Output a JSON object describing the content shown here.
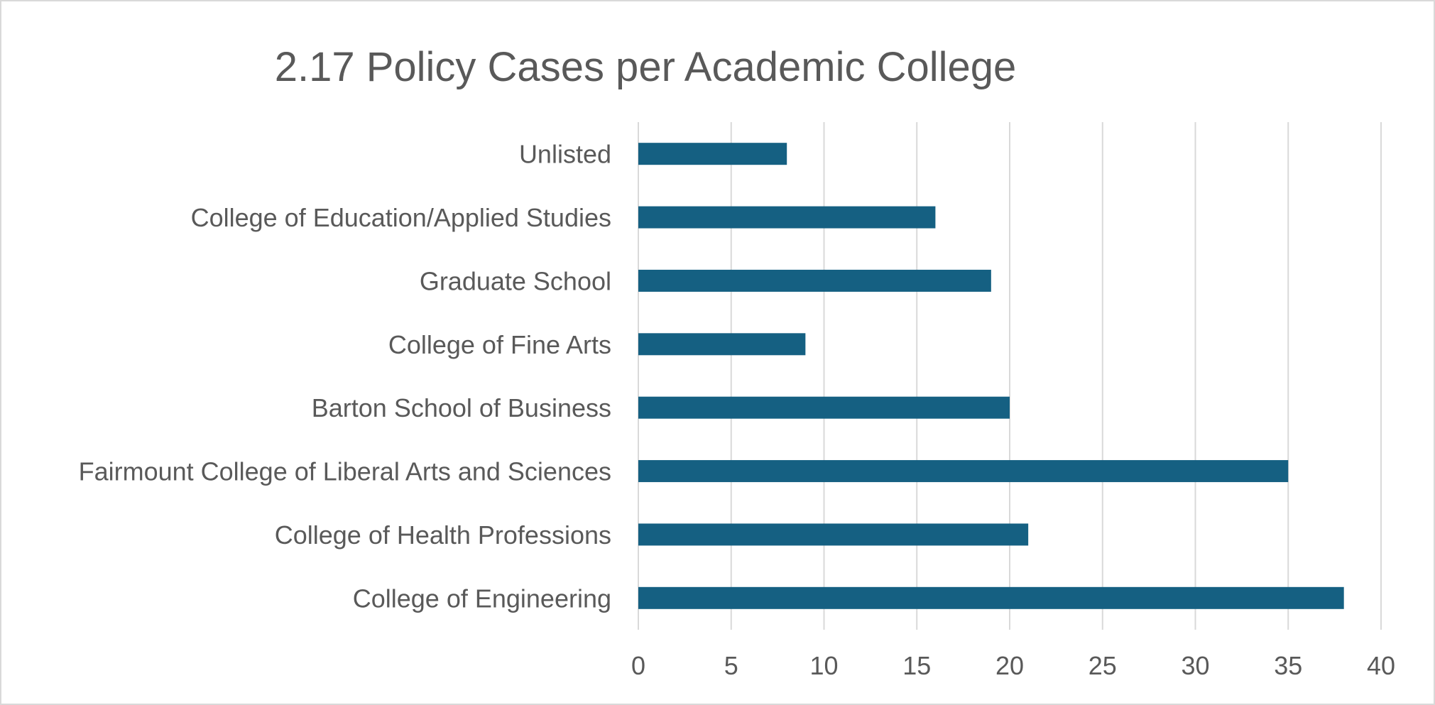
{
  "chart_data": {
    "type": "bar",
    "orientation": "horizontal",
    "title": "2.17 Policy Cases per Academic College",
    "xlabel": "",
    "ylabel": "",
    "categories": [
      "Unlisted",
      "College of Education/Applied Studies",
      "Graduate School",
      "College of Fine Arts",
      "Barton School of Business",
      "Fairmount College of Liberal Arts and Sciences",
      "College of Health Professions",
      "College of Engineering"
    ],
    "values": [
      8,
      16,
      19,
      9,
      20,
      35,
      21,
      38
    ],
    "xlim": [
      0,
      40
    ],
    "xticks": [
      0,
      5,
      10,
      15,
      20,
      25,
      30,
      35,
      40
    ],
    "grid": "vertical",
    "legend": "none",
    "bar_color": "#156082",
    "text_color": "#595959",
    "grid_color": "#d9d9d9"
  }
}
